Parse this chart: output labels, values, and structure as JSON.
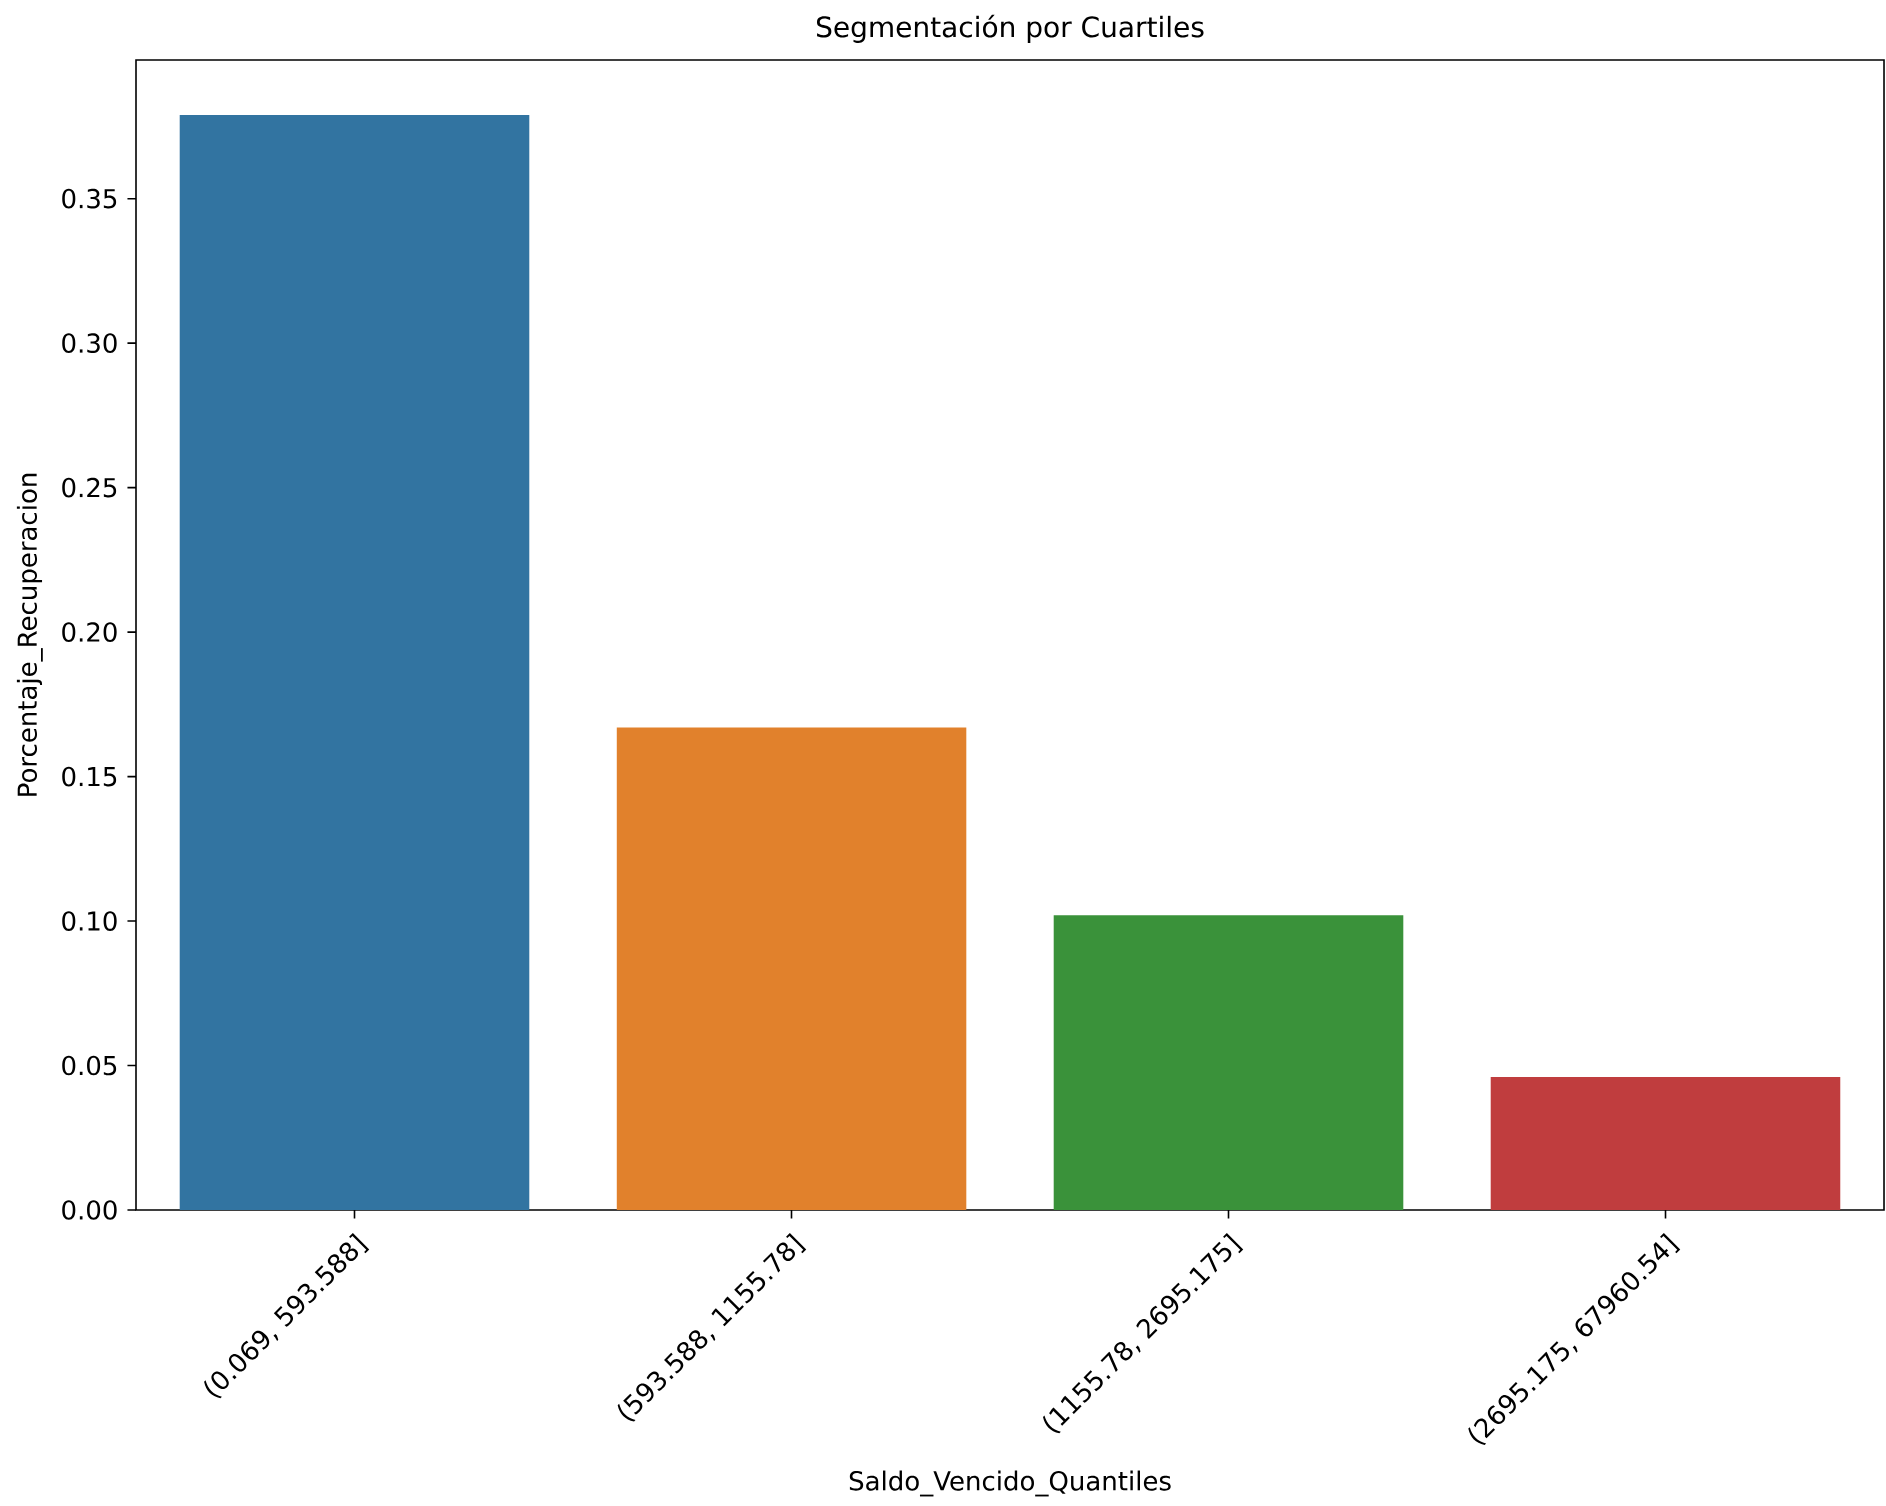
{
  "chart_data": {
    "type": "bar",
    "title": "Segmentación por Cuartiles",
    "xlabel": "Saldo_Vencido_Quantiles",
    "ylabel": "Porcentaje_Recuperacion",
    "categories": [
      "(0.069, 593.588]",
      "(593.588, 1155.78]",
      "(1155.78, 2695.175]",
      "(2695.175, 67960.54]"
    ],
    "values": [
      0.379,
      0.167,
      0.102,
      0.046
    ],
    "colors": [
      "#3274a1",
      "#e1812c",
      "#3a923a",
      "#c03d3e"
    ],
    "ylim": [
      0,
      0.398
    ],
    "yticks": [
      {
        "value": 0,
        "label": "0.00"
      },
      {
        "value": 0.05,
        "label": "0.05"
      },
      {
        "value": 0.1,
        "label": "0.10"
      },
      {
        "value": 0.15,
        "label": "0.15"
      },
      {
        "value": 0.2,
        "label": "0.20"
      },
      {
        "value": 0.25,
        "label": "0.25"
      },
      {
        "value": 0.3,
        "label": "0.30"
      },
      {
        "value": 0.35,
        "label": "0.35"
      }
    ]
  }
}
